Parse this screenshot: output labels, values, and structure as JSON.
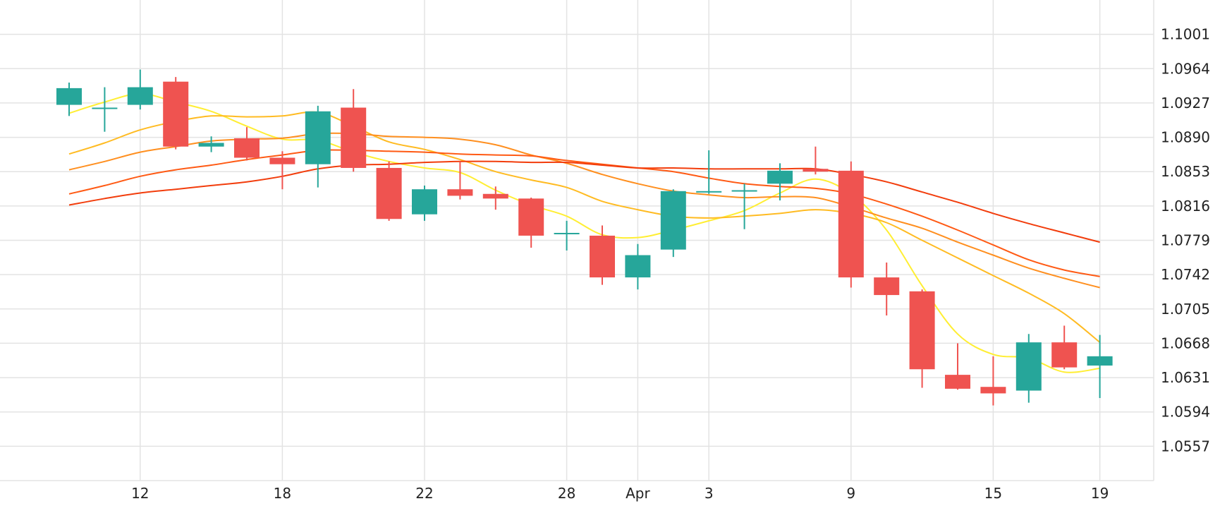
{
  "chart_data": {
    "type": "candlestick",
    "y_ticks": [
      "1.0557",
      "1.0594",
      "1.0631",
      "1.0668",
      "1.0705",
      "1.0742",
      "1.0779",
      "1.0816",
      "1.0853",
      "1.0890",
      "1.0927",
      "1.0964",
      "1.1001"
    ],
    "ylim": [
      1.052,
      1.1038
    ],
    "x_ticks": [
      {
        "label": "12",
        "x": 2
      },
      {
        "label": "18",
        "x": 6
      },
      {
        "label": "22",
        "x": 10
      },
      {
        "label": "28",
        "x": 14
      },
      {
        "label": "Apr",
        "x": 16
      },
      {
        "label": "3",
        "x": 18
      },
      {
        "label": "9",
        "x": 22
      },
      {
        "label": "15",
        "x": 26
      },
      {
        "label": "19",
        "x": 29
      }
    ],
    "candles": [
      {
        "x": 0,
        "open": 1.0925,
        "high": 1.0949,
        "low": 1.0913,
        "close": 1.0943
      },
      {
        "x": 1,
        "open": 1.0922,
        "high": 1.0944,
        "low": 1.0896,
        "close": 1.0922
      },
      {
        "x": 2,
        "open": 1.0925,
        "high": 1.0963,
        "low": 1.092,
        "close": 1.0944
      },
      {
        "x": 3,
        "open": 1.095,
        "high": 1.0955,
        "low": 1.0877,
        "close": 1.088
      },
      {
        "x": 4,
        "open": 1.088,
        "high": 1.0891,
        "low": 1.0874,
        "close": 1.0884
      },
      {
        "x": 5,
        "open": 1.0889,
        "high": 1.0901,
        "low": 1.0865,
        "close": 1.0868
      },
      {
        "x": 6,
        "open": 1.0868,
        "high": 1.0875,
        "low": 1.0834,
        "close": 1.0861
      },
      {
        "x": 7,
        "open": 1.0861,
        "high": 1.0924,
        "low": 1.0836,
        "close": 1.0918
      },
      {
        "x": 8,
        "open": 1.0922,
        "high": 1.0942,
        "low": 1.0853,
        "close": 1.0857
      },
      {
        "x": 9,
        "open": 1.0857,
        "high": 1.0864,
        "low": 1.08,
        "close": 1.0802
      },
      {
        "x": 10,
        "open": 1.0807,
        "high": 1.0838,
        "low": 1.08,
        "close": 1.0834
      },
      {
        "x": 11,
        "open": 1.0834,
        "high": 1.0864,
        "low": 1.0823,
        "close": 1.0827
      },
      {
        "x": 12,
        "open": 1.0829,
        "high": 1.0837,
        "low": 1.0812,
        "close": 1.0824
      },
      {
        "x": 13,
        "open": 1.0824,
        "high": 1.0825,
        "low": 1.0771,
        "close": 1.0784
      },
      {
        "x": 14,
        "open": 1.0787,
        "high": 1.08,
        "low": 1.0768,
        "close": 1.0787
      },
      {
        "x": 15,
        "open": 1.0784,
        "high": 1.0795,
        "low": 1.0731,
        "close": 1.0739
      },
      {
        "x": 16,
        "open": 1.0739,
        "high": 1.0775,
        "low": 1.0726,
        "close": 1.0763
      },
      {
        "x": 17,
        "open": 1.0769,
        "high": 1.0834,
        "low": 1.0761,
        "close": 1.0832
      },
      {
        "x": 18,
        "open": 1.0831,
        "high": 1.0876,
        "low": 1.0829,
        "close": 1.0832
      },
      {
        "x": 19,
        "open": 1.0833,
        "high": 1.084,
        "low": 1.0791,
        "close": 1.0833
      },
      {
        "x": 20,
        "open": 1.084,
        "high": 1.0862,
        "low": 1.0822,
        "close": 1.0854
      },
      {
        "x": 21,
        "open": 1.0856,
        "high": 1.088,
        "low": 1.085,
        "close": 1.0853
      },
      {
        "x": 22,
        "open": 1.0854,
        "high": 1.0864,
        "low": 1.0728,
        "close": 1.0739
      },
      {
        "x": 23,
        "open": 1.0739,
        "high": 1.0755,
        "low": 1.0698,
        "close": 1.072
      },
      {
        "x": 24,
        "open": 1.0724,
        "high": 1.0726,
        "low": 1.062,
        "close": 1.064
      },
      {
        "x": 25,
        "open": 1.0634,
        "high": 1.0668,
        "low": 1.0618,
        "close": 1.0619
      },
      {
        "x": 26,
        "open": 1.0621,
        "high": 1.0654,
        "low": 1.0601,
        "close": 1.0614
      },
      {
        "x": 27,
        "open": 1.0617,
        "high": 1.0678,
        "low": 1.0604,
        "close": 1.0669
      },
      {
        "x": 28,
        "open": 1.0669,
        "high": 1.0687,
        "low": 1.064,
        "close": 1.0642
      },
      {
        "x": 29,
        "open": 1.0644,
        "high": 1.0677,
        "low": 1.0609,
        "close": 1.0654
      }
    ],
    "overlays": [
      {
        "color": "#ffee33",
        "points": [
          [
            0,
            1.0916
          ],
          [
            1,
            1.0928
          ],
          [
            2,
            1.0937
          ],
          [
            3,
            1.0928
          ],
          [
            4,
            1.0918
          ],
          [
            5,
            1.0902
          ],
          [
            6,
            1.0888
          ],
          [
            7,
            1.0887
          ],
          [
            8,
            1.0874
          ],
          [
            9,
            1.0864
          ],
          [
            10,
            1.0857
          ],
          [
            11,
            1.0852
          ],
          [
            12,
            1.0833
          ],
          [
            13,
            1.0817
          ],
          [
            14,
            1.0805
          ],
          [
            15,
            1.0785
          ],
          [
            16,
            1.0782
          ],
          [
            17,
            1.079
          ],
          [
            18,
            1.08
          ],
          [
            19,
            1.0811
          ],
          [
            20,
            1.083
          ],
          [
            21,
            1.0845
          ],
          [
            22,
            1.0829
          ],
          [
            23,
            1.079
          ],
          [
            24,
            1.073
          ],
          [
            25,
            1.0678
          ],
          [
            26,
            1.0656
          ],
          [
            27,
            1.0652
          ],
          [
            28,
            1.0637
          ],
          [
            29,
            1.0641
          ]
        ]
      },
      {
        "color": "#ffbb22",
        "points": [
          [
            0,
            1.0872
          ],
          [
            1,
            1.0884
          ],
          [
            2,
            1.0898
          ],
          [
            3,
            1.0907
          ],
          [
            4,
            1.0913
          ],
          [
            5,
            1.0912
          ],
          [
            6,
            1.0913
          ],
          [
            7,
            1.0917
          ],
          [
            8,
            1.0902
          ],
          [
            9,
            1.0885
          ],
          [
            10,
            1.0877
          ],
          [
            11,
            1.0866
          ],
          [
            12,
            1.0853
          ],
          [
            13,
            1.0844
          ],
          [
            14,
            1.0836
          ],
          [
            15,
            1.0821
          ],
          [
            16,
            1.0812
          ],
          [
            17,
            1.0805
          ],
          [
            18,
            1.0803
          ],
          [
            19,
            1.0805
          ],
          [
            20,
            1.0808
          ],
          [
            21,
            1.0812
          ],
          [
            22,
            1.0808
          ],
          [
            23,
            1.0798
          ],
          [
            24,
            1.0779
          ],
          [
            25,
            1.076
          ],
          [
            26,
            1.0741
          ],
          [
            27,
            1.0722
          ],
          [
            28,
            1.07
          ],
          [
            29,
            1.0669
          ]
        ]
      },
      {
        "color": "#ff8f1f",
        "points": [
          [
            0,
            1.0855
          ],
          [
            1,
            1.0864
          ],
          [
            2,
            1.0874
          ],
          [
            3,
            1.088
          ],
          [
            4,
            1.0886
          ],
          [
            5,
            1.0888
          ],
          [
            6,
            1.0889
          ],
          [
            7,
            1.0894
          ],
          [
            8,
            1.0894
          ],
          [
            9,
            1.0891
          ],
          [
            10,
            1.089
          ],
          [
            11,
            1.0888
          ],
          [
            12,
            1.0882
          ],
          [
            13,
            1.0871
          ],
          [
            14,
            1.0862
          ],
          [
            15,
            1.085
          ],
          [
            16,
            1.084
          ],
          [
            17,
            1.0832
          ],
          [
            18,
            1.0828
          ],
          [
            19,
            1.0825
          ],
          [
            20,
            1.0826
          ],
          [
            21,
            1.0825
          ],
          [
            22,
            1.0815
          ],
          [
            23,
            1.0803
          ],
          [
            24,
            1.0792
          ],
          [
            25,
            1.0777
          ],
          [
            26,
            1.0763
          ],
          [
            27,
            1.0749
          ],
          [
            28,
            1.0738
          ],
          [
            29,
            1.0728
          ]
        ]
      },
      {
        "color": "#ff5a14",
        "points": [
          [
            0,
            1.0829
          ],
          [
            1,
            1.0838
          ],
          [
            2,
            1.0848
          ],
          [
            3,
            1.0855
          ],
          [
            4,
            1.086
          ],
          [
            5,
            1.0866
          ],
          [
            6,
            1.0871
          ],
          [
            7,
            1.0876
          ],
          [
            8,
            1.0876
          ],
          [
            9,
            1.0875
          ],
          [
            10,
            1.0874
          ],
          [
            11,
            1.0872
          ],
          [
            12,
            1.0871
          ],
          [
            13,
            1.087
          ],
          [
            14,
            1.0865
          ],
          [
            15,
            1.0861
          ],
          [
            16,
            1.0857
          ],
          [
            17,
            1.0853
          ],
          [
            18,
            1.0846
          ],
          [
            19,
            1.084
          ],
          [
            20,
            1.0837
          ],
          [
            21,
            1.0835
          ],
          [
            22,
            1.0829
          ],
          [
            23,
            1.0818
          ],
          [
            24,
            1.0805
          ],
          [
            25,
            1.079
          ],
          [
            26,
            1.0774
          ],
          [
            27,
            1.0758
          ],
          [
            28,
            1.0747
          ],
          [
            29,
            1.074
          ]
        ]
      },
      {
        "color": "#f23d0c",
        "points": [
          [
            0,
            1.0817
          ],
          [
            1,
            1.0824
          ],
          [
            2,
            1.083
          ],
          [
            3,
            1.0834
          ],
          [
            4,
            1.0838
          ],
          [
            5,
            1.0842
          ],
          [
            6,
            1.0848
          ],
          [
            7,
            1.0856
          ],
          [
            8,
            1.086
          ],
          [
            9,
            1.0861
          ],
          [
            10,
            1.0863
          ],
          [
            11,
            1.0864
          ],
          [
            12,
            1.0864
          ],
          [
            13,
            1.0863
          ],
          [
            14,
            1.0863
          ],
          [
            15,
            1.086
          ],
          [
            16,
            1.0857
          ],
          [
            17,
            1.0857
          ],
          [
            18,
            1.0856
          ],
          [
            19,
            1.0856
          ],
          [
            20,
            1.0856
          ],
          [
            21,
            1.0856
          ],
          [
            22,
            1.085
          ],
          [
            23,
            1.0842
          ],
          [
            24,
            1.0831
          ],
          [
            25,
            1.082
          ],
          [
            26,
            1.0808
          ],
          [
            27,
            1.0797
          ],
          [
            28,
            1.0787
          ],
          [
            29,
            1.0777
          ]
        ]
      }
    ],
    "colors": {
      "up": "#26a69a",
      "down": "#ef5350",
      "grid": "#e3e3e3",
      "axis_text": "#222222"
    },
    "grid": true
  }
}
